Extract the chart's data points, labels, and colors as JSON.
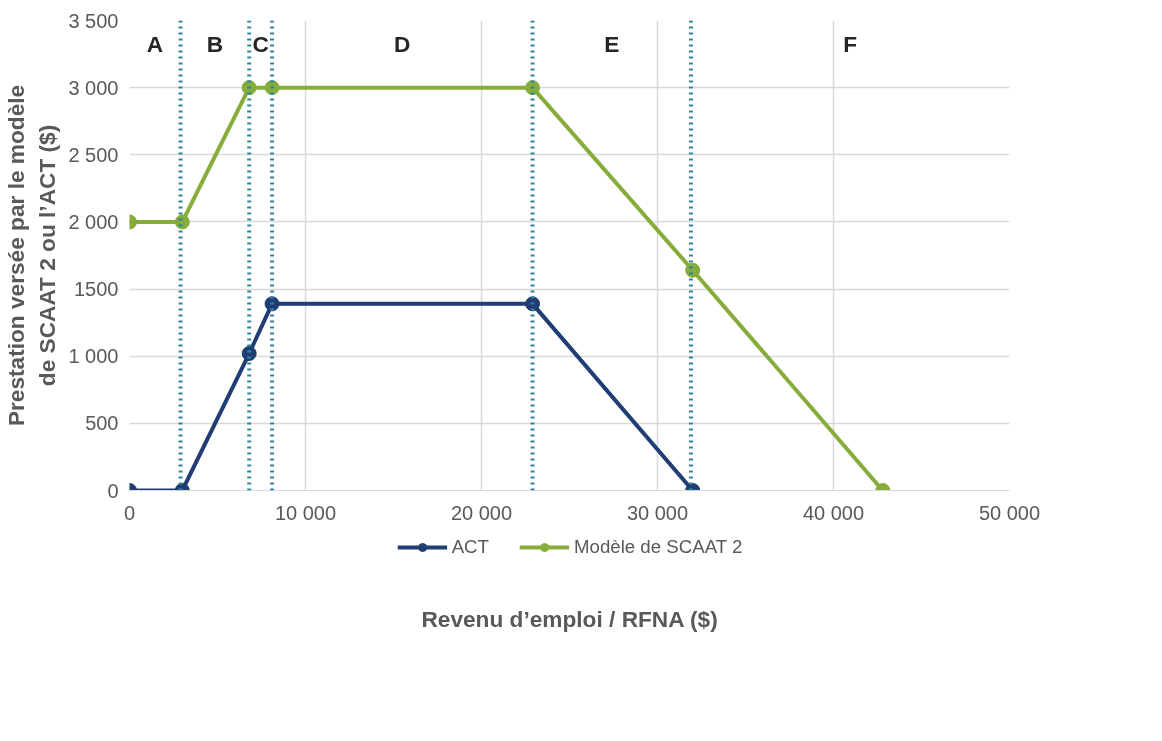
{
  "chart_data": {
    "type": "line",
    "xlabel": "Revenu d’emploi / RFNA ($)",
    "ylabel": "Prestation versée par le modèle\nde SCAAT 2 ou l’ACT ($)",
    "series": [
      {
        "name": "ACT",
        "color": "#203d74",
        "x": [
          0,
          3000,
          6800,
          8100,
          22900,
          32000
        ],
        "values": [
          0,
          0,
          1020,
          1390,
          1390,
          0
        ]
      },
      {
        "name": "Modèle de SCAAT 2",
        "color": "#86ad3b",
        "x": [
          0,
          3000,
          6800,
          8100,
          22900,
          32000,
          42800
        ],
        "values": [
          2000,
          2000,
          3000,
          3000,
          3000,
          1640,
          0
        ]
      }
    ],
    "xlim": [
      0,
      50000
    ],
    "ylim": [
      0,
      3500
    ],
    "xticks": [
      0,
      {
        "value": 10000,
        "label": "10 000"
      },
      {
        "value": 20000,
        "label": "20 000"
      },
      {
        "value": 30000,
        "label": "30 000"
      },
      {
        "value": 40000,
        "label": "40 000"
      },
      {
        "value": 50000,
        "label": "50 000"
      }
    ],
    "yticks": [
      0,
      500,
      {
        "value": 1000,
        "label": "1 000"
      },
      1500,
      {
        "value": 2000,
        "label": "2 000"
      },
      {
        "value": 2500,
        "label": "2 500"
      },
      {
        "value": 3000,
        "label": "3 000"
      },
      {
        "value": 3500,
        "label": "3 500"
      }
    ],
    "ref_lines": [
      {
        "axis": "x",
        "value": 2900,
        "color": "#31849b",
        "line_style": "dotted"
      },
      {
        "axis": "x",
        "value": 6800,
        "color": "#31849b",
        "line_style": "dotted"
      },
      {
        "axis": "x",
        "value": 8100,
        "color": "#31849b",
        "line_style": "dotted"
      },
      {
        "axis": "x",
        "value": 22900,
        "color": "#31849b",
        "line_style": "dotted"
      },
      {
        "axis": "x",
        "value": 31900,
        "color": "#31849b",
        "line_style": "dotted"
      }
    ],
    "annotations": [
      "A",
      "B",
      "C",
      "D",
      "E",
      "F"
    ],
    "grid": true,
    "legend": "bottom",
    "marker": "circle",
    "line_style": "solid"
  }
}
